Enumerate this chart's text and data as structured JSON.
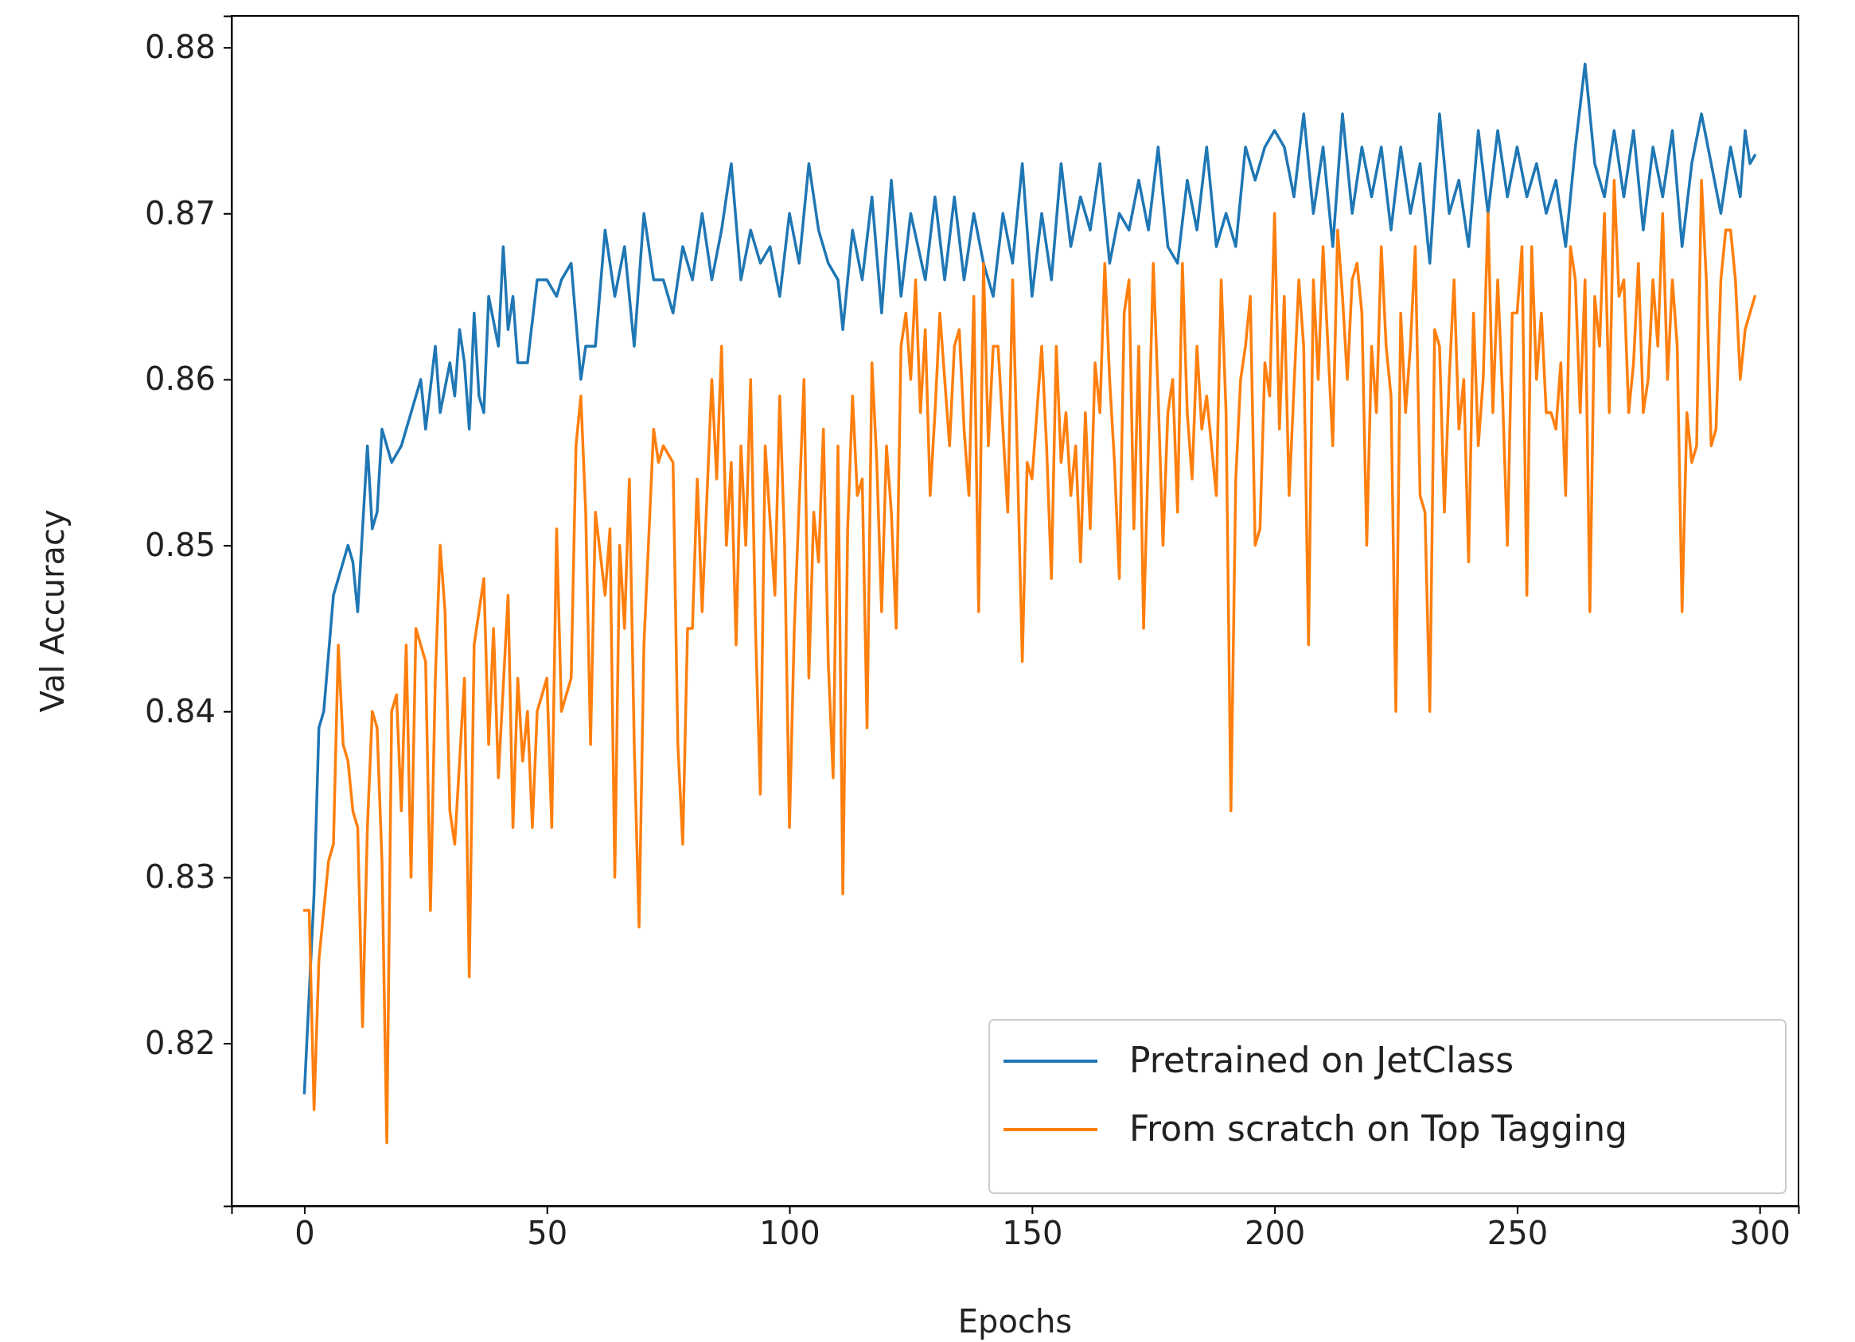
{
  "chart_data": {
    "type": "line",
    "xlabel": "Epochs",
    "ylabel": "Val Accuracy",
    "xlim": [
      -15,
      308
    ],
    "ylim": [
      0.8102,
      0.8819
    ],
    "xticks": [
      0,
      50,
      100,
      150,
      200,
      250,
      300
    ],
    "yticks": [
      {
        "value": 0.82,
        "label": "0.82"
      },
      {
        "value": 0.83,
        "label": "0.83"
      },
      {
        "value": 0.84,
        "label": "0.84"
      },
      {
        "value": 0.85,
        "label": "0.85"
      },
      {
        "value": 0.86,
        "label": "0.86"
      },
      {
        "value": 0.87,
        "label": "0.87"
      },
      {
        "value": 0.88,
        "label": "0.88"
      }
    ],
    "legend": "bottom right",
    "grid": false,
    "series": [
      {
        "name": "Pretrained on JetClass",
        "color": "#1f77b4",
        "x": [
          0,
          2,
          3,
          4,
          6,
          8,
          9,
          10,
          11,
          13,
          14,
          15,
          16,
          18,
          20,
          22,
          24,
          25,
          27,
          28,
          30,
          31,
          32,
          33,
          34,
          35,
          36,
          37,
          38,
          40,
          41,
          42,
          43,
          44,
          46,
          48,
          50,
          52,
          53,
          55,
          57,
          58,
          60,
          62,
          64,
          66,
          68,
          70,
          72,
          74,
          76,
          78,
          80,
          82,
          84,
          86,
          88,
          90,
          92,
          94,
          96,
          98,
          100,
          102,
          104,
          106,
          108,
          110,
          111,
          113,
          115,
          117,
          119,
          121,
          123,
          125,
          128,
          130,
          132,
          134,
          136,
          138,
          140,
          142,
          144,
          146,
          148,
          150,
          152,
          154,
          156,
          158,
          160,
          162,
          164,
          166,
          168,
          170,
          172,
          174,
          176,
          178,
          180,
          182,
          184,
          186,
          188,
          190,
          192,
          194,
          196,
          198,
          200,
          202,
          204,
          206,
          208,
          210,
          212,
          214,
          216,
          218,
          220,
          222,
          224,
          226,
          228,
          230,
          232,
          234,
          236,
          238,
          240,
          242,
          244,
          246,
          248,
          250,
          252,
          254,
          256,
          258,
          260,
          262,
          264,
          266,
          268,
          270,
          272,
          274,
          276,
          278,
          280,
          282,
          284,
          286,
          288,
          290,
          292,
          294,
          296,
          297,
          298,
          299
        ],
        "values": [
          0.817,
          0.829,
          0.839,
          0.84,
          0.847,
          0.849,
          0.85,
          0.849,
          0.846,
          0.856,
          0.851,
          0.852,
          0.857,
          0.855,
          0.856,
          0.858,
          0.86,
          0.857,
          0.862,
          0.858,
          0.861,
          0.859,
          0.863,
          0.861,
          0.857,
          0.864,
          0.859,
          0.858,
          0.865,
          0.862,
          0.868,
          0.863,
          0.865,
          0.861,
          0.861,
          0.866,
          0.866,
          0.865,
          0.866,
          0.867,
          0.86,
          0.862,
          0.862,
          0.869,
          0.865,
          0.868,
          0.862,
          0.87,
          0.866,
          0.866,
          0.864,
          0.868,
          0.866,
          0.87,
          0.866,
          0.869,
          0.873,
          0.866,
          0.869,
          0.867,
          0.868,
          0.865,
          0.87,
          0.867,
          0.873,
          0.869,
          0.867,
          0.866,
          0.863,
          0.869,
          0.866,
          0.871,
          0.864,
          0.872,
          0.865,
          0.87,
          0.866,
          0.871,
          0.866,
          0.871,
          0.866,
          0.87,
          0.867,
          0.865,
          0.87,
          0.867,
          0.873,
          0.865,
          0.87,
          0.866,
          0.873,
          0.868,
          0.871,
          0.869,
          0.873,
          0.867,
          0.87,
          0.869,
          0.872,
          0.869,
          0.874,
          0.868,
          0.867,
          0.872,
          0.869,
          0.874,
          0.868,
          0.87,
          0.868,
          0.874,
          0.872,
          0.874,
          0.875,
          0.874,
          0.871,
          0.876,
          0.87,
          0.874,
          0.868,
          0.876,
          0.87,
          0.874,
          0.871,
          0.874,
          0.869,
          0.874,
          0.87,
          0.873,
          0.867,
          0.876,
          0.87,
          0.872,
          0.868,
          0.875,
          0.87,
          0.875,
          0.871,
          0.874,
          0.871,
          0.873,
          0.87,
          0.872,
          0.868,
          0.874,
          0.879,
          0.873,
          0.871,
          0.875,
          0.871,
          0.875,
          0.869,
          0.874,
          0.871,
          0.875,
          0.868,
          0.873,
          0.876,
          0.873,
          0.87,
          0.874,
          0.871,
          0.875,
          0.873,
          0.8735
        ]
      },
      {
        "name": "From scratch on Top Tagging",
        "color": "#ff7f0e",
        "x": [
          0,
          1,
          2,
          3,
          5,
          6,
          7,
          8,
          9,
          10,
          11,
          12,
          13,
          14,
          15,
          16,
          17,
          18,
          19,
          20,
          21,
          22,
          23,
          25,
          26,
          27,
          28,
          29,
          30,
          31,
          33,
          34,
          35,
          37,
          38,
          39,
          40,
          42,
          43,
          44,
          45,
          46,
          47,
          48,
          50,
          51,
          52,
          53,
          55,
          56,
          57,
          58,
          59,
          60,
          62,
          63,
          64,
          65,
          66,
          67,
          68,
          69,
          70,
          72,
          73,
          74,
          76,
          77,
          78,
          79,
          80,
          81,
          82,
          84,
          85,
          86,
          87,
          88,
          89,
          90,
          91,
          92,
          93,
          94,
          95,
          97,
          98,
          99,
          100,
          101,
          103,
          104,
          105,
          106,
          107,
          108,
          109,
          110,
          111,
          112,
          113,
          114,
          115,
          116,
          117,
          118,
          119,
          120,
          121,
          122,
          123,
          124,
          125,
          126,
          127,
          128,
          129,
          130,
          131,
          132,
          133,
          134,
          135,
          136,
          137,
          138,
          139,
          140,
          141,
          142,
          143,
          144,
          145,
          146,
          147,
          148,
          149,
          150,
          151,
          152,
          153,
          154,
          155,
          156,
          157,
          158,
          159,
          160,
          161,
          162,
          163,
          164,
          165,
          166,
          167,
          168,
          169,
          170,
          171,
          172,
          173,
          174,
          175,
          176,
          177,
          178,
          179,
          180,
          181,
          182,
          183,
          184,
          185,
          186,
          187,
          188,
          189,
          190,
          191,
          192,
          193,
          194,
          195,
          196,
          197,
          198,
          199,
          200,
          201,
          202,
          203,
          205,
          206,
          207,
          208,
          209,
          210,
          211,
          212,
          213,
          214,
          215,
          216,
          217,
          218,
          219,
          220,
          221,
          222,
          223,
          224,
          225,
          226,
          227,
          228,
          229,
          230,
          231,
          232,
          233,
          234,
          235,
          236,
          237,
          238,
          239,
          240,
          241,
          242,
          243,
          244,
          245,
          246,
          247,
          248,
          249,
          250,
          251,
          252,
          253,
          254,
          255,
          256,
          257,
          258,
          259,
          260,
          261,
          262,
          263,
          264,
          265,
          266,
          267,
          268,
          269,
          270,
          271,
          272,
          273,
          274,
          275,
          276,
          277,
          278,
          279,
          280,
          281,
          282,
          283,
          284,
          285,
          286,
          287,
          288,
          289,
          290,
          291,
          292,
          293,
          294,
          295,
          296,
          297,
          298,
          299
        ],
        "values": [
          0.828,
          0.828,
          0.816,
          0.825,
          0.831,
          0.832,
          0.844,
          0.838,
          0.837,
          0.834,
          0.833,
          0.821,
          0.833,
          0.84,
          0.839,
          0.831,
          0.814,
          0.84,
          0.841,
          0.834,
          0.844,
          0.83,
          0.845,
          0.843,
          0.828,
          0.842,
          0.85,
          0.846,
          0.834,
          0.832,
          0.842,
          0.824,
          0.844,
          0.848,
          0.838,
          0.845,
          0.836,
          0.847,
          0.833,
          0.842,
          0.837,
          0.84,
          0.833,
          0.84,
          0.842,
          0.833,
          0.851,
          0.84,
          0.842,
          0.856,
          0.859,
          0.852,
          0.838,
          0.852,
          0.847,
          0.851,
          0.83,
          0.85,
          0.845,
          0.854,
          0.838,
          0.827,
          0.844,
          0.857,
          0.855,
          0.856,
          0.855,
          0.838,
          0.832,
          0.845,
          0.845,
          0.854,
          0.846,
          0.86,
          0.854,
          0.862,
          0.85,
          0.855,
          0.844,
          0.856,
          0.85,
          0.86,
          0.845,
          0.835,
          0.856,
          0.847,
          0.859,
          0.85,
          0.833,
          0.845,
          0.86,
          0.842,
          0.852,
          0.849,
          0.857,
          0.843,
          0.836,
          0.856,
          0.829,
          0.851,
          0.859,
          0.853,
          0.854,
          0.839,
          0.861,
          0.855,
          0.846,
          0.856,
          0.852,
          0.845,
          0.862,
          0.864,
          0.86,
          0.866,
          0.858,
          0.863,
          0.853,
          0.858,
          0.864,
          0.86,
          0.856,
          0.862,
          0.863,
          0.857,
          0.853,
          0.865,
          0.846,
          0.867,
          0.856,
          0.862,
          0.862,
          0.857,
          0.852,
          0.866,
          0.855,
          0.843,
          0.855,
          0.854,
          0.858,
          0.862,
          0.856,
          0.848,
          0.862,
          0.855,
          0.858,
          0.853,
          0.856,
          0.849,
          0.858,
          0.851,
          0.861,
          0.858,
          0.867,
          0.86,
          0.855,
          0.848,
          0.864,
          0.866,
          0.851,
          0.862,
          0.845,
          0.856,
          0.867,
          0.859,
          0.85,
          0.858,
          0.86,
          0.852,
          0.867,
          0.858,
          0.854,
          0.862,
          0.857,
          0.859,
          0.856,
          0.853,
          0.866,
          0.858,
          0.834,
          0.854,
          0.86,
          0.862,
          0.865,
          0.85,
          0.851,
          0.861,
          0.859,
          0.87,
          0.857,
          0.865,
          0.853,
          0.866,
          0.862,
          0.844,
          0.866,
          0.86,
          0.868,
          0.862,
          0.856,
          0.869,
          0.865,
          0.86,
          0.866,
          0.867,
          0.864,
          0.85,
          0.862,
          0.858,
          0.868,
          0.862,
          0.859,
          0.84,
          0.864,
          0.858,
          0.862,
          0.868,
          0.853,
          0.852,
          0.84,
          0.863,
          0.862,
          0.852,
          0.86,
          0.866,
          0.857,
          0.86,
          0.849,
          0.864,
          0.856,
          0.86,
          0.87,
          0.858,
          0.866,
          0.859,
          0.85,
          0.864,
          0.864,
          0.868,
          0.847,
          0.868,
          0.86,
          0.864,
          0.858,
          0.858,
          0.857,
          0.861,
          0.853,
          0.868,
          0.866,
          0.858,
          0.866,
          0.846,
          0.865,
          0.862,
          0.87,
          0.858,
          0.872,
          0.865,
          0.866,
          0.858,
          0.861,
          0.867,
          0.858,
          0.86,
          0.866,
          0.862,
          0.87,
          0.86,
          0.866,
          0.862,
          0.846,
          0.858,
          0.855,
          0.856,
          0.872,
          0.866,
          0.856,
          0.857,
          0.866,
          0.869,
          0.869,
          0.866,
          0.86,
          0.863,
          0.864,
          0.865
        ]
      }
    ]
  }
}
